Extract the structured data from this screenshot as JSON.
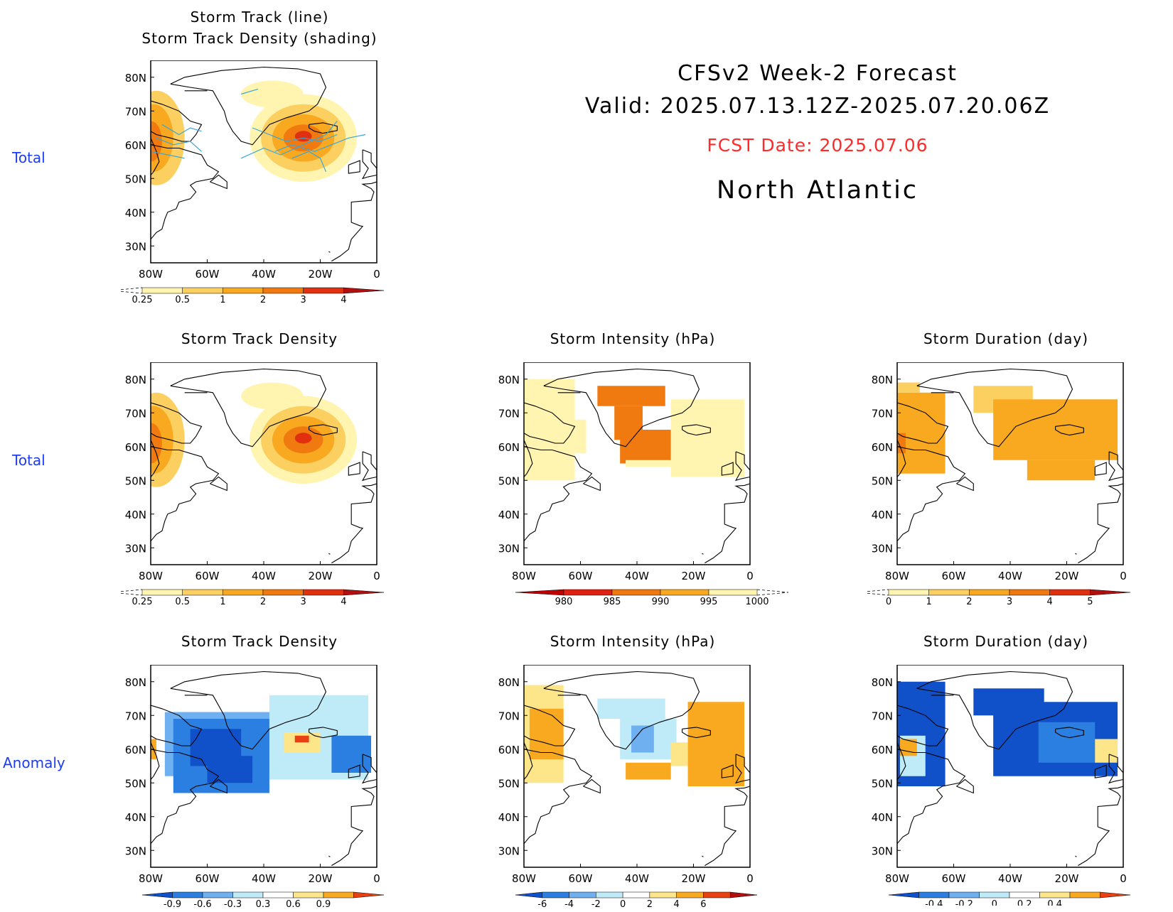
{
  "header": {
    "title_line1": "CFSv2 Week-2 Forecast",
    "title_line2": "Valid: 2025.07.13.12Z-2025.07.20.06Z",
    "fcst_date": "FCST Date: 2025.07.06",
    "region": "North Atlantic"
  },
  "row_labels": {
    "row1": "Total",
    "row2": "Total",
    "row3": "Anomaly"
  },
  "colors": {
    "row_label": "#1f3df0",
    "fcst_date": "#ff2a2a"
  },
  "axes": {
    "lat_ticks": [
      "80N",
      "70N",
      "60N",
      "50N",
      "40N",
      "30N"
    ],
    "lon_ticks": [
      "80W",
      "60W",
      "40W",
      "20W",
      "0"
    ],
    "lat_range": [
      25,
      85
    ],
    "lon_range": [
      -80,
      0
    ]
  },
  "chart_data": [
    {
      "id": "p1",
      "type": "heatmap",
      "title_lines": [
        "Storm Track (line)",
        "Storm Track Density (shading)"
      ],
      "colorbar": {
        "labels": [
          "0.25",
          "0.5",
          "1",
          "2",
          "3",
          "4"
        ],
        "colors": [
          "#fff5b0",
          "#fcd060",
          "#f8a920",
          "#f07a10",
          "#e03010",
          "#b01010"
        ],
        "left_dashed": true
      },
      "blobs": [
        {
          "lon": -78,
          "lat": 62,
          "rx": 10,
          "ry": 14,
          "level": 1
        },
        {
          "lon": -79,
          "lat": 62,
          "rx": 7,
          "ry": 10,
          "level": 2
        },
        {
          "lon": -80,
          "lat": 61,
          "rx": 4,
          "ry": 6,
          "level": 3
        },
        {
          "lon": -37,
          "lat": 75,
          "rx": 11,
          "ry": 4,
          "level": 0
        },
        {
          "lon": -26,
          "lat": 62,
          "rx": 19,
          "ry": 13,
          "level": 0
        },
        {
          "lon": -26,
          "lat": 62,
          "rx": 15,
          "ry": 10,
          "level": 1
        },
        {
          "lon": -26,
          "lat": 62,
          "rx": 11,
          "ry": 7,
          "level": 2
        },
        {
          "lon": -26,
          "lat": 62,
          "rx": 7,
          "ry": 4,
          "level": 3
        },
        {
          "lon": -26,
          "lat": 62.5,
          "rx": 3,
          "ry": 1.6,
          "level": 4
        }
      ],
      "tracks": true
    },
    {
      "id": "p2",
      "type": "heatmap",
      "title_lines": [
        "Storm Track Density"
      ],
      "colorbar": {
        "labels": [
          "0.25",
          "0.5",
          "1",
          "2",
          "3",
          "4"
        ],
        "colors": [
          "#fff5b0",
          "#fcd060",
          "#f8a920",
          "#f07a10",
          "#e03010",
          "#b01010"
        ],
        "left_dashed": true
      },
      "blobs": [
        {
          "lon": -78,
          "lat": 62,
          "rx": 10,
          "ry": 14,
          "level": 1
        },
        {
          "lon": -79,
          "lat": 62,
          "rx": 7,
          "ry": 10,
          "level": 2
        },
        {
          "lon": -80,
          "lat": 61,
          "rx": 4,
          "ry": 6,
          "level": 3
        },
        {
          "lon": -37,
          "lat": 75,
          "rx": 11,
          "ry": 4,
          "level": 0
        },
        {
          "lon": -26,
          "lat": 62,
          "rx": 19,
          "ry": 13,
          "level": 0
        },
        {
          "lon": -26,
          "lat": 62,
          "rx": 15,
          "ry": 10,
          "level": 1
        },
        {
          "lon": -26,
          "lat": 62,
          "rx": 11,
          "ry": 7,
          "level": 2
        },
        {
          "lon": -26,
          "lat": 62,
          "rx": 7,
          "ry": 4,
          "level": 3
        },
        {
          "lon": -26,
          "lat": 62.5,
          "rx": 3,
          "ry": 1.6,
          "level": 4
        }
      ]
    },
    {
      "id": "p3",
      "type": "heatmap",
      "title_lines": [
        "Storm Intensity (hPa)"
      ],
      "colorbar": {
        "labels": [
          "980",
          "985",
          "990",
          "995",
          "1000"
        ],
        "colors": [
          "#c00000",
          "#e02010",
          "#f07a10",
          "#f8a920",
          "#fff5b0"
        ],
        "right_dashed": true
      },
      "cells": [
        {
          "lon": [
            -80,
            -62
          ],
          "lat": [
            50,
            80
          ],
          "level": 4
        },
        {
          "lon": [
            -62,
            -58
          ],
          "lat": [
            58,
            68
          ],
          "level": 4
        },
        {
          "lon": [
            -54,
            -30
          ],
          "lat": [
            72,
            78
          ],
          "level": 2
        },
        {
          "lon": [
            -48,
            -38
          ],
          "lat": [
            62,
            72
          ],
          "level": 2
        },
        {
          "lon": [
            -46,
            -28
          ],
          "lat": [
            55,
            65
          ],
          "level": 2
        },
        {
          "lon": [
            -28,
            -2
          ],
          "lat": [
            51,
            74
          ],
          "level": 4
        },
        {
          "lon": [
            -44,
            -28
          ],
          "lat": [
            54,
            56
          ],
          "level": 4
        }
      ]
    },
    {
      "id": "p4",
      "type": "heatmap",
      "title_lines": [
        "Storm Duration (day)"
      ],
      "colorbar": {
        "labels": [
          "0",
          "1",
          "2",
          "3",
          "4",
          "5"
        ],
        "colors": [
          "#fff5b0",
          "#fcd060",
          "#f8a920",
          "#f07a10",
          "#e03010",
          "#b01010"
        ],
        "left_dashed": true
      },
      "cells": [
        {
          "lon": [
            -80,
            -63
          ],
          "lat": [
            52,
            76
          ],
          "level": 2
        },
        {
          "lon": [
            -80,
            -77
          ],
          "lat": [
            58,
            64
          ],
          "level": 3
        },
        {
          "lon": [
            -53,
            -32
          ],
          "lat": [
            70,
            78
          ],
          "level": 1
        },
        {
          "lon": [
            -46,
            -2
          ],
          "lat": [
            56,
            74
          ],
          "level": 2
        },
        {
          "lon": [
            -34,
            -10
          ],
          "lat": [
            50,
            56
          ],
          "level": 2
        },
        {
          "lon": [
            -80,
            -72
          ],
          "lat": [
            76,
            79
          ],
          "level": 1
        }
      ]
    },
    {
      "id": "p5",
      "type": "heatmap",
      "title_lines": [
        "Storm Track Density"
      ],
      "colorbar": {
        "labels": [
          "-0.9",
          "-0.6",
          "-0.3",
          "0.3",
          "0.6",
          "0.9"
        ],
        "colors": [
          "#1050c8",
          "#2b7fe0",
          "#6fb0f0",
          "#bfeaf8",
          "#ffffff",
          "#fde68a",
          "#f8a920",
          "#e84010"
        ]
      },
      "cells": [
        {
          "lon": [
            -75,
            -36
          ],
          "lat": [
            52,
            71
          ],
          "level": 2
        },
        {
          "lon": [
            -72,
            -38
          ],
          "lat": [
            47,
            69
          ],
          "level": 1
        },
        {
          "lon": [
            -66,
            -48
          ],
          "lat": [
            55,
            66
          ],
          "level": 0
        },
        {
          "lon": [
            -60,
            -44
          ],
          "lat": [
            50,
            58
          ],
          "level": 0
        },
        {
          "lon": [
            -38,
            -3
          ],
          "lat": [
            51,
            76
          ],
          "level": 3
        },
        {
          "lon": [
            -33,
            -20
          ],
          "lat": [
            59,
            65
          ],
          "level": 5
        },
        {
          "lon": [
            -29,
            -24
          ],
          "lat": [
            62,
            64
          ],
          "level": 7
        },
        {
          "lon": [
            -16,
            -2
          ],
          "lat": [
            53,
            64
          ],
          "level": 1
        },
        {
          "lon": [
            -80,
            -78
          ],
          "lat": [
            57,
            63
          ],
          "level": 6
        }
      ]
    },
    {
      "id": "p6",
      "type": "heatmap",
      "title_lines": [
        "Storm Intensity (hPa)"
      ],
      "colorbar": {
        "labels": [
          "-6",
          "-4",
          "-2",
          "0",
          "2",
          "4",
          "6"
        ],
        "colors": [
          "#1050c8",
          "#2b7fe0",
          "#6fb0f0",
          "#bfeaf8",
          "#ffffff",
          "#fde68a",
          "#f8a920",
          "#e84010",
          "#b01010"
        ]
      },
      "cells": [
        {
          "lon": [
            -80,
            -66
          ],
          "lat": [
            50,
            79
          ],
          "level": 5
        },
        {
          "lon": [
            -78,
            -66
          ],
          "lat": [
            57,
            72
          ],
          "level": 6
        },
        {
          "lon": [
            -54,
            -30
          ],
          "lat": [
            69,
            75
          ],
          "level": 3
        },
        {
          "lon": [
            -46,
            -26
          ],
          "lat": [
            57,
            69
          ],
          "level": 3
        },
        {
          "lon": [
            -42,
            -34
          ],
          "lat": [
            59,
            67
          ],
          "level": 2
        },
        {
          "lon": [
            -44,
            -28
          ],
          "lat": [
            51,
            56
          ],
          "level": 6
        },
        {
          "lon": [
            -22,
            -2
          ],
          "lat": [
            49,
            74
          ],
          "level": 6
        },
        {
          "lon": [
            -28,
            -22
          ],
          "lat": [
            55,
            62
          ],
          "level": 5
        }
      ]
    },
    {
      "id": "p7",
      "type": "heatmap",
      "title_lines": [
        "Storm Duration (day)"
      ],
      "colorbar": {
        "labels": [
          "-0.4",
          "-0.2",
          "0",
          "0.2",
          "0.4"
        ],
        "colors": [
          "#1050c8",
          "#2b7fe0",
          "#6fb0f0",
          "#bfeaf8",
          "#ffffff",
          "#fde68a",
          "#f8a920",
          "#e84010"
        ]
      },
      "cells": [
        {
          "lon": [
            -80,
            -63
          ],
          "lat": [
            49,
            80
          ],
          "level": 0
        },
        {
          "lon": [
            -79,
            -70
          ],
          "lat": [
            52,
            64
          ],
          "level": 3
        },
        {
          "lon": [
            -79,
            -73
          ],
          "lat": [
            58,
            63
          ],
          "level": 6
        },
        {
          "lon": [
            -53,
            -28
          ],
          "lat": [
            70,
            78
          ],
          "level": 0
        },
        {
          "lon": [
            -46,
            -2
          ],
          "lat": [
            52,
            74
          ],
          "level": 0
        },
        {
          "lon": [
            -30,
            -10
          ],
          "lat": [
            56,
            68
          ],
          "level": 1
        },
        {
          "lon": [
            -10,
            -2
          ],
          "lat": [
            56,
            63
          ],
          "level": 5
        }
      ]
    }
  ]
}
